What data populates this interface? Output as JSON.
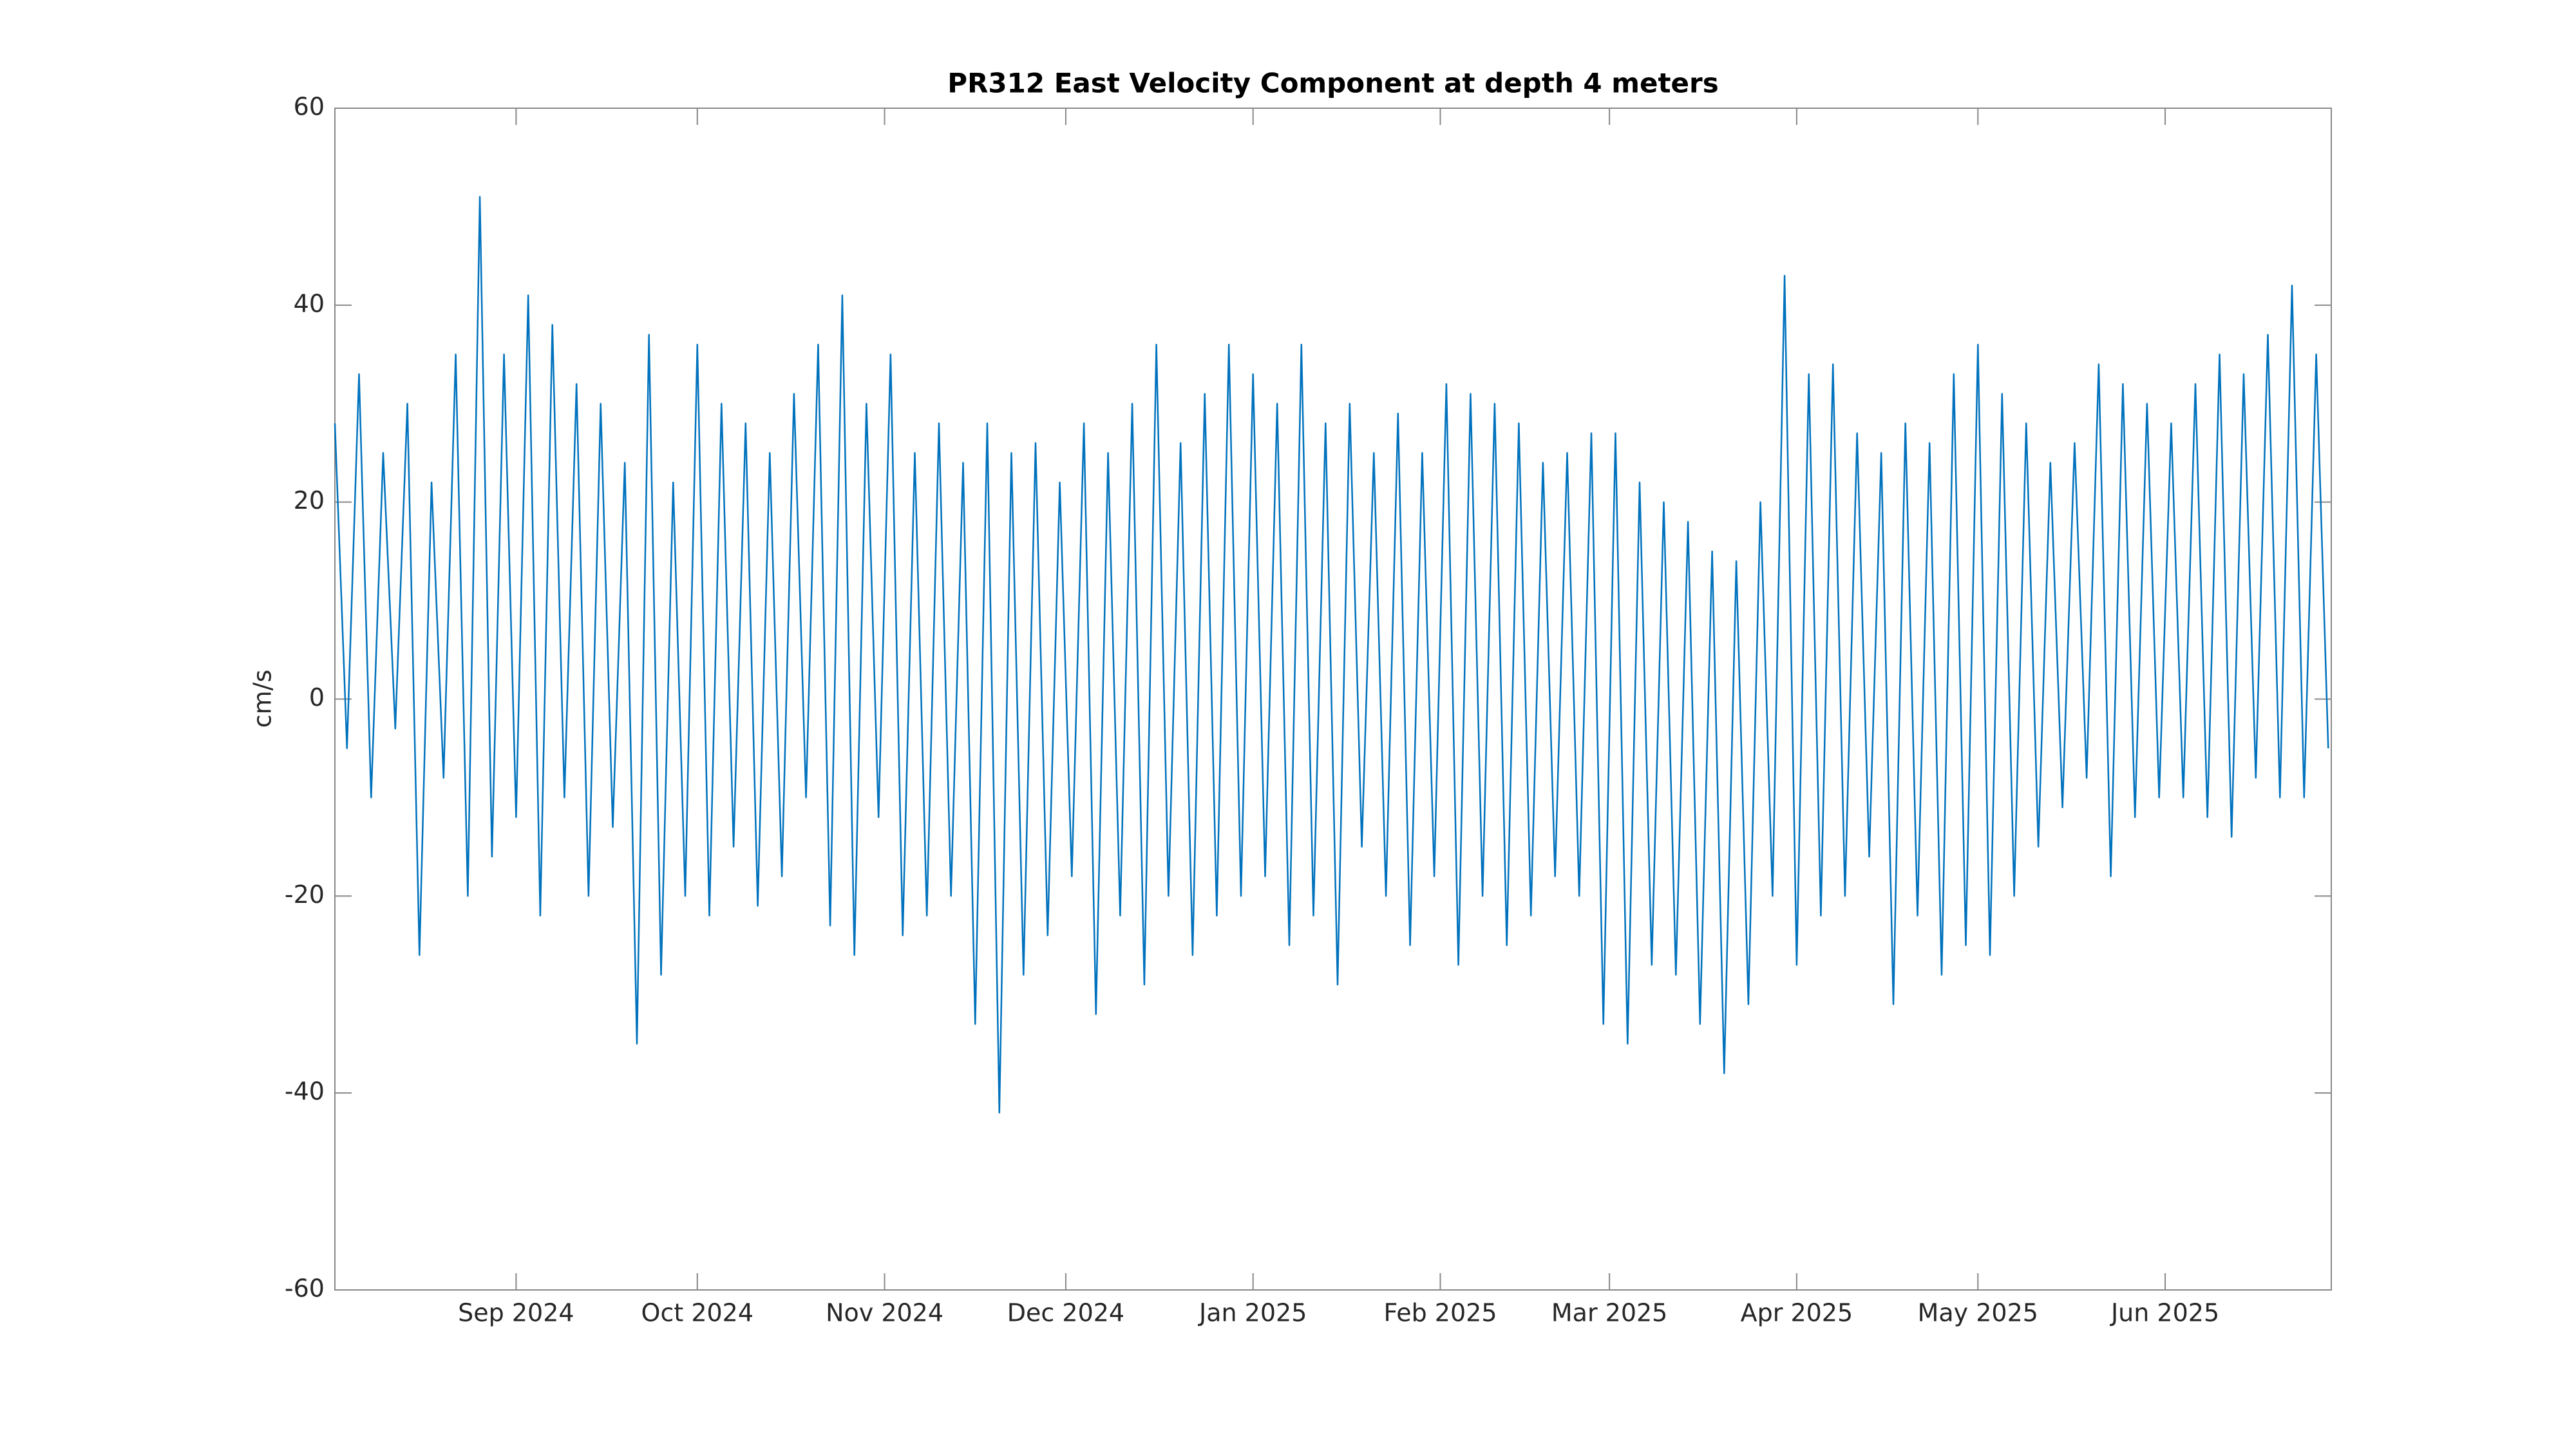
{
  "chart_data": {
    "type": "line",
    "title": "PR312 East Velocity Component at depth 4 meters",
    "y_label": "cm/s",
    "x": [
      1,
      3,
      5,
      7,
      9,
      11,
      13,
      15,
      17,
      19,
      21,
      23,
      25,
      27,
      29,
      31,
      33,
      35,
      37,
      39,
      41,
      43,
      45,
      47,
      49,
      51,
      53,
      55,
      57,
      59,
      61,
      63,
      65,
      67,
      69,
      71,
      73,
      75,
      77,
      79,
      81,
      83,
      85,
      87,
      89,
      91,
      93,
      95,
      97,
      99,
      101,
      103,
      105,
      107,
      109,
      111,
      113,
      115,
      117,
      119,
      121,
      123,
      125,
      127,
      129,
      131,
      133,
      135,
      137,
      139,
      141,
      143,
      145,
      147,
      149,
      151,
      153,
      155,
      157,
      159,
      161,
      163,
      165,
      167,
      169,
      171,
      173,
      175,
      177,
      179,
      181,
      183,
      185,
      187,
      189,
      191,
      193,
      195,
      197,
      199,
      201,
      203,
      205,
      207,
      209,
      211,
      213,
      215,
      217,
      219,
      221,
      223,
      225,
      227,
      229,
      231,
      233,
      235,
      237,
      239,
      241,
      243,
      245,
      247,
      249,
      251,
      253,
      255,
      257,
      259,
      261,
      263,
      265,
      267,
      269,
      271,
      273,
      275,
      277,
      279,
      281,
      283,
      285,
      287,
      289,
      291,
      293,
      295,
      297,
      299,
      301,
      303,
      305,
      307,
      309,
      311,
      313,
      315,
      317,
      319,
      321,
      323,
      325,
      327,
      329,
      331
    ],
    "series": [
      {
        "color": "#0072bd",
        "values": [
          28,
          -5,
          33,
          -10,
          25,
          -3,
          30,
          -26,
          22,
          -8,
          35,
          -20,
          51,
          -16,
          35,
          -12,
          41,
          -22,
          38,
          -10,
          32,
          -20,
          30,
          -13,
          24,
          -35,
          37,
          -28,
          22,
          -20,
          36,
          -22,
          30,
          -15,
          28,
          -21,
          25,
          -18,
          31,
          -10,
          36,
          -23,
          41,
          -26,
          30,
          -12,
          35,
          -24,
          25,
          -22,
          28,
          -20,
          24,
          -33,
          28,
          -42,
          25,
          -28,
          26,
          -24,
          22,
          -18,
          28,
          -32,
          25,
          -22,
          30,
          -29,
          36,
          -20,
          26,
          -26,
          31,
          -22,
          36,
          -20,
          33,
          -18,
          30,
          -25,
          36,
          -22,
          28,
          -29,
          30,
          -15,
          25,
          -20,
          29,
          -25,
          25,
          -18,
          32,
          -27,
          31,
          -20,
          30,
          -25,
          28,
          -22,
          24,
          -18,
          25,
          -20,
          27,
          -33,
          27,
          -35,
          22,
          -27,
          20,
          -28,
          18,
          -33,
          15,
          -38,
          14,
          -31,
          20,
          -20,
          43,
          -27,
          33,
          -22,
          34,
          -20,
          27,
          -16,
          25,
          -31,
          28,
          -22,
          26,
          -28,
          33,
          -25,
          36,
          -26,
          31,
          -20,
          28,
          -15,
          24,
          -11,
          26,
          -8,
          34,
          -18,
          32,
          -12,
          30,
          -10,
          28,
          -10,
          32,
          -12,
          35,
          -14,
          33,
          -8,
          37,
          -10,
          42,
          -10,
          35,
          -5
        ]
      }
    ],
    "xlim": [
      1,
      331.5
    ],
    "xticks": [
      {
        "value": 31,
        "label": "Sep 2024"
      },
      {
        "value": 61,
        "label": "Oct 2024"
      },
      {
        "value": 92,
        "label": "Nov 2024"
      },
      {
        "value": 122,
        "label": "Dec 2024"
      },
      {
        "value": 153,
        "label": "Jan 2025"
      },
      {
        "value": 184,
        "label": "Feb 2025"
      },
      {
        "value": 212,
        "label": "Mar 2025"
      },
      {
        "value": 243,
        "label": "Apr 2025"
      },
      {
        "value": 273,
        "label": "May 2025"
      },
      {
        "value": 304,
        "label": "Jun 2025"
      }
    ],
    "ylim": [
      -60,
      60
    ],
    "yticks": [
      -60,
      -40,
      -20,
      0,
      20,
      40,
      60
    ],
    "grid": false
  }
}
